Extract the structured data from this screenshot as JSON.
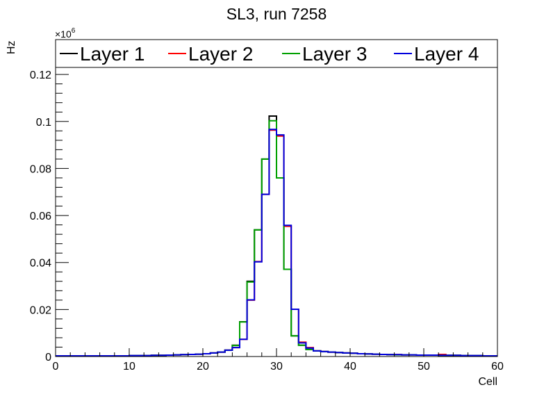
{
  "chart_data": {
    "type": "line",
    "style": "step-histogram",
    "title": "SL3, run 7258",
    "xlabel": "Cell",
    "ylabel": "Hz",
    "y_multiplier": "×10",
    "y_multiplier_exp": "6",
    "xlim": [
      0,
      60
    ],
    "ylim": [
      0,
      0.123
    ],
    "x_ticks": [
      0,
      10,
      20,
      30,
      40,
      50,
      60
    ],
    "x_tick_labels": [
      "0",
      "10",
      "20",
      "30",
      "40",
      "50",
      "60"
    ],
    "y_ticks": [
      0,
      0.02,
      0.04,
      0.06,
      0.08,
      0.1,
      0.12
    ],
    "y_tick_labels": [
      "0",
      "0.02",
      "0.04",
      "0.06",
      "0.08",
      "0.1",
      "0.12"
    ],
    "grid": false,
    "legend_placement": "top",
    "bin_width": 1,
    "series": [
      {
        "name": "Layer 1",
        "color": "#000000",
        "values": [
          0.0003,
          0.0003,
          0.0003,
          0.0003,
          0.0003,
          0.0003,
          0.0003,
          0.0003,
          0.0003,
          0.0003,
          0.0004,
          0.0004,
          0.0004,
          0.0005,
          0.0005,
          0.0006,
          0.0007,
          0.0008,
          0.0009,
          0.001,
          0.0012,
          0.0015,
          0.0019,
          0.0027,
          0.0048,
          0.0148,
          0.032,
          0.0539,
          0.084,
          0.1023,
          0.076,
          0.0371,
          0.0088,
          0.0048,
          0.003,
          0.0024,
          0.0021,
          0.0019,
          0.0017,
          0.0015,
          0.0014,
          0.0012,
          0.0011,
          0.001,
          0.0009,
          0.0008,
          0.0008,
          0.0007,
          0.0007,
          0.0006,
          0.0006,
          0.0006,
          0.0005,
          0.0005,
          0.0005,
          0.0004,
          0.0004,
          0.0004,
          0.0003,
          0.0003
        ]
      },
      {
        "name": "Layer 2",
        "color": "#ff0000",
        "values": [
          0.0003,
          0.0003,
          0.0003,
          0.0003,
          0.0003,
          0.0003,
          0.0003,
          0.0003,
          0.0003,
          0.0003,
          0.0004,
          0.0004,
          0.0004,
          0.0005,
          0.0005,
          0.0006,
          0.0007,
          0.0008,
          0.0009,
          0.001,
          0.0012,
          0.0015,
          0.0019,
          0.0027,
          0.0038,
          0.0073,
          0.024,
          0.0404,
          0.069,
          0.0963,
          0.0938,
          0.0554,
          0.0201,
          0.0061,
          0.0038,
          0.0024,
          0.0021,
          0.0019,
          0.0017,
          0.0015,
          0.0014,
          0.0012,
          0.0011,
          0.001,
          0.0009,
          0.0008,
          0.0008,
          0.0007,
          0.0007,
          0.0006,
          0.0006,
          0.0006,
          0.0009,
          0.0005,
          0.0005,
          0.0004,
          0.0004,
          0.0004,
          0.0003,
          0.0003
        ]
      },
      {
        "name": "Layer 3",
        "color": "#00a000",
        "values": [
          0.0003,
          0.0003,
          0.0003,
          0.0003,
          0.0003,
          0.0003,
          0.0003,
          0.0003,
          0.0003,
          0.0003,
          0.0004,
          0.0004,
          0.0004,
          0.0005,
          0.0005,
          0.0006,
          0.0007,
          0.0008,
          0.0009,
          0.001,
          0.0012,
          0.0015,
          0.0019,
          0.0027,
          0.0047,
          0.0147,
          0.0317,
          0.0539,
          0.084,
          0.1003,
          0.076,
          0.0371,
          0.0088,
          0.0048,
          0.003,
          0.0024,
          0.0021,
          0.0019,
          0.0017,
          0.0015,
          0.0014,
          0.0012,
          0.0011,
          0.001,
          0.0009,
          0.0008,
          0.0007,
          0.0007,
          0.0007,
          0.0006,
          0.0006,
          0.0006,
          0.0005,
          0.0005,
          0.0005,
          0.0004,
          0.0004,
          0.0004,
          0.0003,
          0.0003
        ]
      },
      {
        "name": "Layer 4",
        "color": "#0000dd",
        "values": [
          0.0003,
          0.0003,
          0.0003,
          0.0003,
          0.0003,
          0.0003,
          0.0003,
          0.0003,
          0.0003,
          0.0003,
          0.0004,
          0.0004,
          0.0004,
          0.0005,
          0.0005,
          0.0006,
          0.0007,
          0.0008,
          0.0009,
          0.001,
          0.0012,
          0.0015,
          0.0019,
          0.0027,
          0.0038,
          0.0073,
          0.0241,
          0.0403,
          0.069,
          0.0966,
          0.0943,
          0.0558,
          0.0201,
          0.0058,
          0.0036,
          0.0024,
          0.0021,
          0.0019,
          0.0017,
          0.0015,
          0.0014,
          0.0012,
          0.0011,
          0.001,
          0.0009,
          0.0008,
          0.0008,
          0.0007,
          0.0007,
          0.0006,
          0.0006,
          0.0006,
          0.0005,
          0.0005,
          0.0005,
          0.0004,
          0.0004,
          0.0004,
          0.0003,
          0.0003
        ]
      }
    ]
  }
}
